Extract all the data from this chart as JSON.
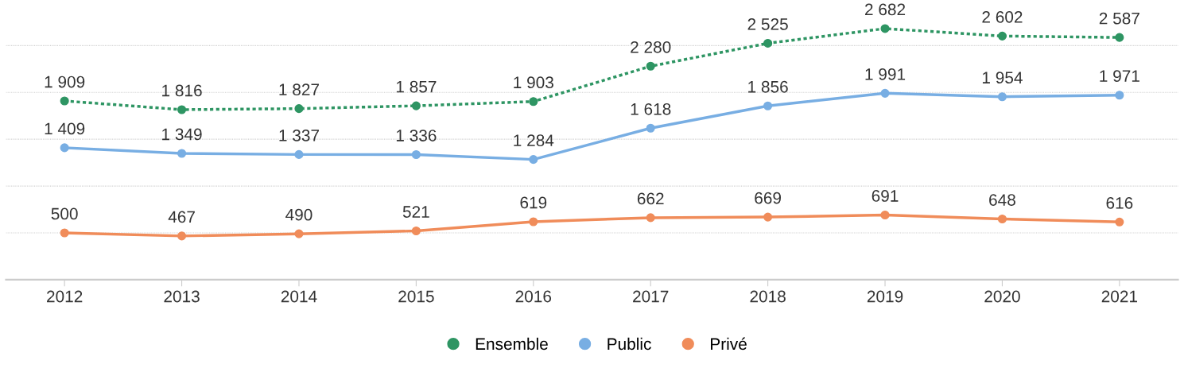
{
  "chart_data": {
    "type": "line",
    "categories": [
      "2012",
      "2013",
      "2014",
      "2015",
      "2016",
      "2017",
      "2018",
      "2019",
      "2020",
      "2021"
    ],
    "yticks": [
      {
        "value": 0,
        "label": null
      },
      {
        "value": 500,
        "label": null
      },
      {
        "value": 1000,
        "label": null
      },
      {
        "value": 1500,
        "label": null
      },
      {
        "value": 2000,
        "label": null
      },
      {
        "value": 2500,
        "label": null
      }
    ],
    "tick_labels": "x",
    "grid": "y",
    "legend": "bottom",
    "marker": "circle",
    "series": [
      {
        "name": "Ensemble",
        "color": "#2e9563",
        "line_style": "dotted",
        "values": [
          1909,
          1816,
          1827,
          1857,
          1903,
          2280,
          2525,
          2682,
          2602,
          2587
        ],
        "value_labels": [
          "1 909",
          "1 816",
          "1 827",
          "1 857",
          "1 903",
          "2 280",
          "2 525",
          "2 682",
          "2 602",
          "2 587"
        ]
      },
      {
        "name": "Public",
        "color": "#78aee3",
        "line_style": "solid",
        "values": [
          1409,
          1349,
          1337,
          1336,
          1284,
          1618,
          1856,
          1991,
          1954,
          1971
        ],
        "value_labels": [
          "1 409",
          "1 349",
          "1 337",
          "1 336",
          "1 284",
          "1 618",
          "1 856",
          "1 991",
          "1 954",
          "1 971"
        ]
      },
      {
        "name": "Privé",
        "color": "#f08c5a",
        "line_style": "solid",
        "values": [
          500,
          467,
          490,
          521,
          619,
          662,
          669,
          691,
          648,
          616
        ],
        "value_labels": [
          "500",
          "467",
          "490",
          "521",
          "619",
          "662",
          "669",
          "691",
          "648",
          "616"
        ]
      }
    ]
  }
}
